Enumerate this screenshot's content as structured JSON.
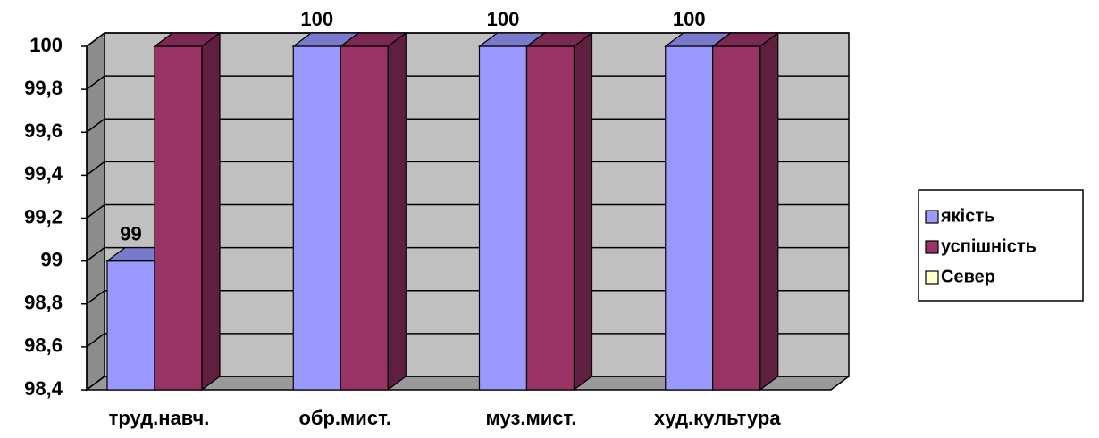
{
  "chart_data": {
    "type": "bar3d",
    "categories": [
      "труд.навч.",
      "обр.мист.",
      "муз.мист.",
      "худ.культура"
    ],
    "series": [
      {
        "name": "якість",
        "color": "#9999ff",
        "values": [
          99,
          100,
          100,
          100
        ],
        "show_values": true
      },
      {
        "name": "успішність",
        "color": "#993366",
        "values": [
          100,
          100,
          100,
          100
        ]
      },
      {
        "name": "Север",
        "color": "#ffffcc",
        "values": [
          null,
          null,
          null,
          null
        ]
      }
    ],
    "ylim": [
      98.4,
      100
    ],
    "yticks": [
      {
        "value": 98.4,
        "label": "98,4"
      },
      {
        "value": 98.6,
        "label": "98,6"
      },
      {
        "value": 98.8,
        "label": "98,8"
      },
      99,
      {
        "value": 99.2,
        "label": "99,2"
      },
      {
        "value": 99.4,
        "label": "99,4"
      },
      {
        "value": 99.6,
        "label": "99,6"
      },
      {
        "value": 99.8,
        "label": "99,8"
      },
      100
    ],
    "grid": true,
    "legend": "right"
  }
}
